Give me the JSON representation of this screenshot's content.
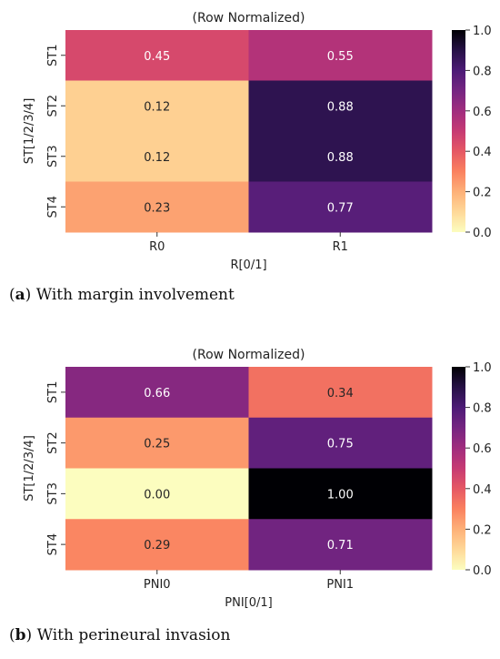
{
  "chart_data": [
    {
      "type": "heatmap",
      "title": "(Row Normalized)",
      "xlabel": "R[0/1]",
      "ylabel": "ST[1/2/3/4]",
      "x_categories": [
        "R0",
        "R1"
      ],
      "y_categories": [
        "ST1",
        "ST2",
        "ST3",
        "ST4"
      ],
      "values": [
        [
          0.45,
          0.55
        ],
        [
          0.12,
          0.88
        ],
        [
          0.12,
          0.88
        ],
        [
          0.23,
          0.77
        ]
      ],
      "cell_labels": [
        [
          "0.45",
          "0.55"
        ],
        [
          "0.12",
          "0.88"
        ],
        [
          "0.12",
          "0.88"
        ],
        [
          "0.23",
          "0.77"
        ]
      ],
      "colorbar": {
        "min": 0.0,
        "max": 1.0,
        "ticks": [
          "0.0",
          "0.2",
          "0.4",
          "0.6",
          "0.8",
          "1.0"
        ],
        "colormap": "magma_r"
      },
      "caption_letter": "a",
      "caption_text": " With margin involvement"
    },
    {
      "type": "heatmap",
      "title": "(Row Normalized)",
      "xlabel": "PNI[0/1]",
      "ylabel": "ST[1/2/3/4]",
      "x_categories": [
        "PNI0",
        "PNI1"
      ],
      "y_categories": [
        "ST1",
        "ST2",
        "ST3",
        "ST4"
      ],
      "values": [
        [
          0.66,
          0.34
        ],
        [
          0.25,
          0.75
        ],
        [
          0.0,
          1.0
        ],
        [
          0.29,
          0.71
        ]
      ],
      "cell_labels": [
        [
          "0.66",
          "0.34"
        ],
        [
          "0.25",
          "0.75"
        ],
        [
          "0.00",
          "1.00"
        ],
        [
          "0.29",
          "0.71"
        ]
      ],
      "colorbar": {
        "min": 0.0,
        "max": 1.0,
        "ticks": [
          "0.0",
          "0.2",
          "0.4",
          "0.6",
          "0.8",
          "1.0"
        ],
        "colormap": "magma_r"
      },
      "caption_letter": "b",
      "caption_text": " With perineural invasion"
    }
  ]
}
